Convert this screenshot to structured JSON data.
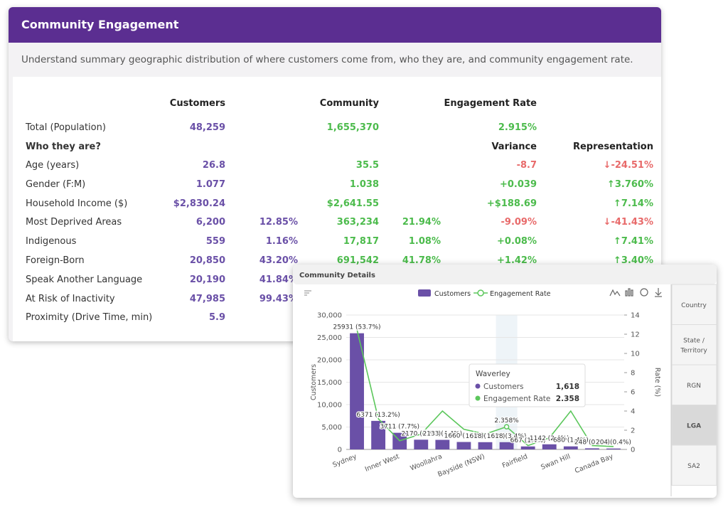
{
  "header": {
    "title": "Community Engagement",
    "description": "Understand summary geographic distribution of where customers come from, who they are, and community engagement rate."
  },
  "table": {
    "columns": {
      "customers": "Customers",
      "community": "Community",
      "engagement_rate": "Engagement Rate"
    },
    "total": {
      "label": "Total (Population)",
      "customers": "48,259",
      "community": "1,655,370",
      "engagement_rate": "2.915%"
    },
    "section": {
      "label": "Who they are?",
      "variance": "Variance",
      "representation": "Representation"
    },
    "rows": [
      {
        "label": "Age (years)",
        "customers": "26.8",
        "community": "35.5",
        "variance": "-8.7",
        "representation": "↓-24.51%"
      },
      {
        "label": "Gender (F:M)",
        "customers": "1.077",
        "community": "1.038",
        "variance": "+0.039",
        "representation": "↑3.760%"
      },
      {
        "label": "Household Income ($)",
        "customers": "$2,830.24",
        "community": "$2,641.55",
        "variance": "+$188.69",
        "representation": "↑7.14%"
      },
      {
        "label": "Most Deprived Areas",
        "customers": "6,200",
        "customers_pct": "12.85%",
        "community": "363,234",
        "community_pct": "21.94%",
        "variance": "-9.09%",
        "representation": "↓-41.43%"
      },
      {
        "label": "Indigenous",
        "customers": "559",
        "customers_pct": "1.16%",
        "community": "17,817",
        "community_pct": "1.08%",
        "variance": "+0.08%",
        "representation": "↑7.41%"
      },
      {
        "label": "Foreign-Born",
        "customers": "20,850",
        "customers_pct": "43.20%",
        "community": "691,542",
        "community_pct": "41.78%",
        "variance": "+1.42%",
        "representation": "↑3.40%"
      },
      {
        "label": "Speak Another Language",
        "customers": "20,190",
        "customers_pct": "41.84%"
      },
      {
        "label": "At Risk of Inactivity",
        "customers": "47,985",
        "customers_pct": "99.43%"
      },
      {
        "label": "Proximity (Drive Time, min)",
        "customers": "5.9"
      }
    ]
  },
  "panel": {
    "title": "Community Details",
    "tabs": [
      "Country",
      "State / Territory",
      "RGN",
      "LGA",
      "SA2"
    ],
    "selected_tab": 3
  },
  "chart_data": {
    "type": "bar_line",
    "y_label": "Customers",
    "y2_label": "Rate (%)",
    "categories": [
      "Sydney",
      null,
      "Inner West",
      null,
      "Woollahra",
      null,
      "Bayside (NSW)",
      null,
      "Fairfield",
      null,
      "Swan Hill",
      null,
      "Canada Bay"
    ],
    "series": [
      {
        "name": "Customers",
        "color": "#6a50a7",
        "type": "bar",
        "values": [
          25931,
          6371,
          3711,
          2170,
          2133,
          1660,
          1618,
          1618,
          667,
          1142,
          680,
          248,
          204
        ],
        "value_labels": [
          "25931 (53.7%)",
          "6371 (13.2%)",
          "3711 (7.7%)",
          "2170 (4.5%)",
          "2133 (4.4%)",
          "1660 (3.4%)",
          "1618 (3.4%)",
          "1618 (3.4%)",
          "667 (1.4%)",
          "1142 (2.4%)",
          "680 (1.4%)",
          "248 (0.5%)",
          "204 (0.4%)"
        ]
      },
      {
        "name": "Engagement Rate",
        "color": "#5cc75c",
        "type": "line",
        "axis": "y2",
        "values": [
          12.5,
          3.2,
          0.9,
          1.6,
          4.0,
          2.1,
          1.6,
          2.358,
          0.4,
          1.2,
          4.0,
          0.4,
          0.3
        ],
        "value_labels": [
          null,
          null,
          null,
          null,
          null,
          null,
          null,
          "2.358%",
          null,
          null,
          null,
          null,
          null
        ]
      }
    ],
    "ylim": [
      0,
      30000
    ],
    "yticks": [
      0,
      {
        "value": 5000,
        "label": "5,000"
      },
      {
        "value": 10000,
        "label": "10,000"
      },
      {
        "value": 15000,
        "label": "15,000"
      },
      {
        "value": 20000,
        "label": "20,000"
      },
      {
        "value": 25000,
        "label": "25,000"
      },
      {
        "value": 30000,
        "label": "30,000"
      }
    ],
    "y2lim": [
      0,
      14
    ],
    "y2ticks": [
      0,
      2,
      4,
      6,
      8,
      10,
      12,
      14
    ],
    "grid": true,
    "legend": "top",
    "tooltip": {
      "title": "Waverley",
      "index": 7,
      "rows": [
        {
          "name": "Customers",
          "value": "1,618"
        },
        {
          "name": "Engagement Rate",
          "value": "2.358"
        }
      ]
    }
  }
}
